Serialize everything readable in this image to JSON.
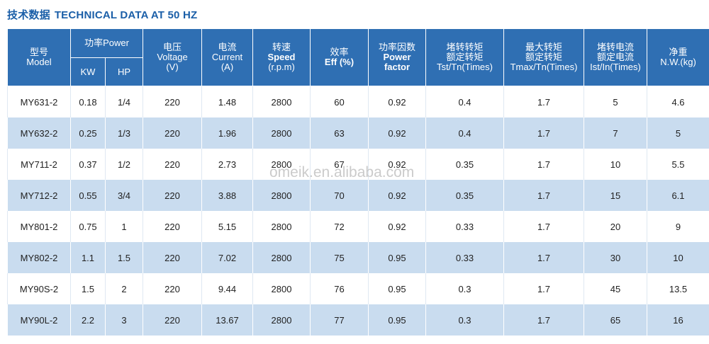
{
  "title": {
    "zh": "技术数据",
    "en": "TECHNICAL DATA AT 50 HZ"
  },
  "headers": {
    "model": {
      "zh": "型号",
      "en": "Model"
    },
    "power": {
      "zh": "功率",
      "en": "Power"
    },
    "kw": "KW",
    "hp": "HP",
    "voltage": {
      "zh": "电压",
      "en": "Voltage",
      "unit": "(V)"
    },
    "current": {
      "zh": "电流",
      "en": "Current",
      "unit": "(A)"
    },
    "speed": {
      "zh": "转速",
      "en": "Speed",
      "unit": "(r.p.m)"
    },
    "eff": {
      "zh": "效率",
      "en": "Eff (%)"
    },
    "pf": {
      "zh": "功率因数",
      "en1": "Power",
      "en2": "factor"
    },
    "tst": {
      "zh1": "堵转转矩",
      "zh2": "额定转矩",
      "en": "Tst/Tn(Times)"
    },
    "tmax": {
      "zh1": "最大转矩",
      "zh2": "额定转矩",
      "en": "Tmax/Tn(Times)"
    },
    "ist": {
      "zh1": "堵转电流",
      "zh2": "额定电流",
      "en": "Ist/In(Times)"
    },
    "nw": {
      "zh": "净重",
      "en": "N.W.(kg)"
    }
  },
  "rows": [
    [
      "MY631-2",
      "0.18",
      "1/4",
      "220",
      "1.48",
      "2800",
      "60",
      "0.92",
      "0.4",
      "1.7",
      "5",
      "4.6"
    ],
    [
      "MY632-2",
      "0.25",
      "1/3",
      "220",
      "1.96",
      "2800",
      "63",
      "0.92",
      "0.4",
      "1.7",
      "7",
      "5"
    ],
    [
      "MY711-2",
      "0.37",
      "1/2",
      "220",
      "2.73",
      "2800",
      "67",
      "0.92",
      "0.35",
      "1.7",
      "10",
      "5.5"
    ],
    [
      "MY712-2",
      "0.55",
      "3/4",
      "220",
      "3.88",
      "2800",
      "70",
      "0.92",
      "0.35",
      "1.7",
      "15",
      "6.1"
    ],
    [
      "MY801-2",
      "0.75",
      "1",
      "220",
      "5.15",
      "2800",
      "72",
      "0.92",
      "0.33",
      "1.7",
      "20",
      "9"
    ],
    [
      "MY802-2",
      "1.1",
      "1.5",
      "220",
      "7.02",
      "2800",
      "75",
      "0.95",
      "0.33",
      "1.7",
      "30",
      "10"
    ],
    [
      "MY90S-2",
      "1.5",
      "2",
      "220",
      "9.44",
      "2800",
      "76",
      "0.95",
      "0.3",
      "1.7",
      "45",
      "13.5"
    ],
    [
      "MY90L-2",
      "2.2",
      "3",
      "220",
      "13.67",
      "2800",
      "77",
      "0.95",
      "0.3",
      "1.7",
      "65",
      "16"
    ]
  ],
  "watermark": "omeik.en.alibaba.com",
  "colors": {
    "header_bg": "#2f6fb3",
    "title": "#1b5fa8",
    "stripe": "#c9dcef"
  }
}
